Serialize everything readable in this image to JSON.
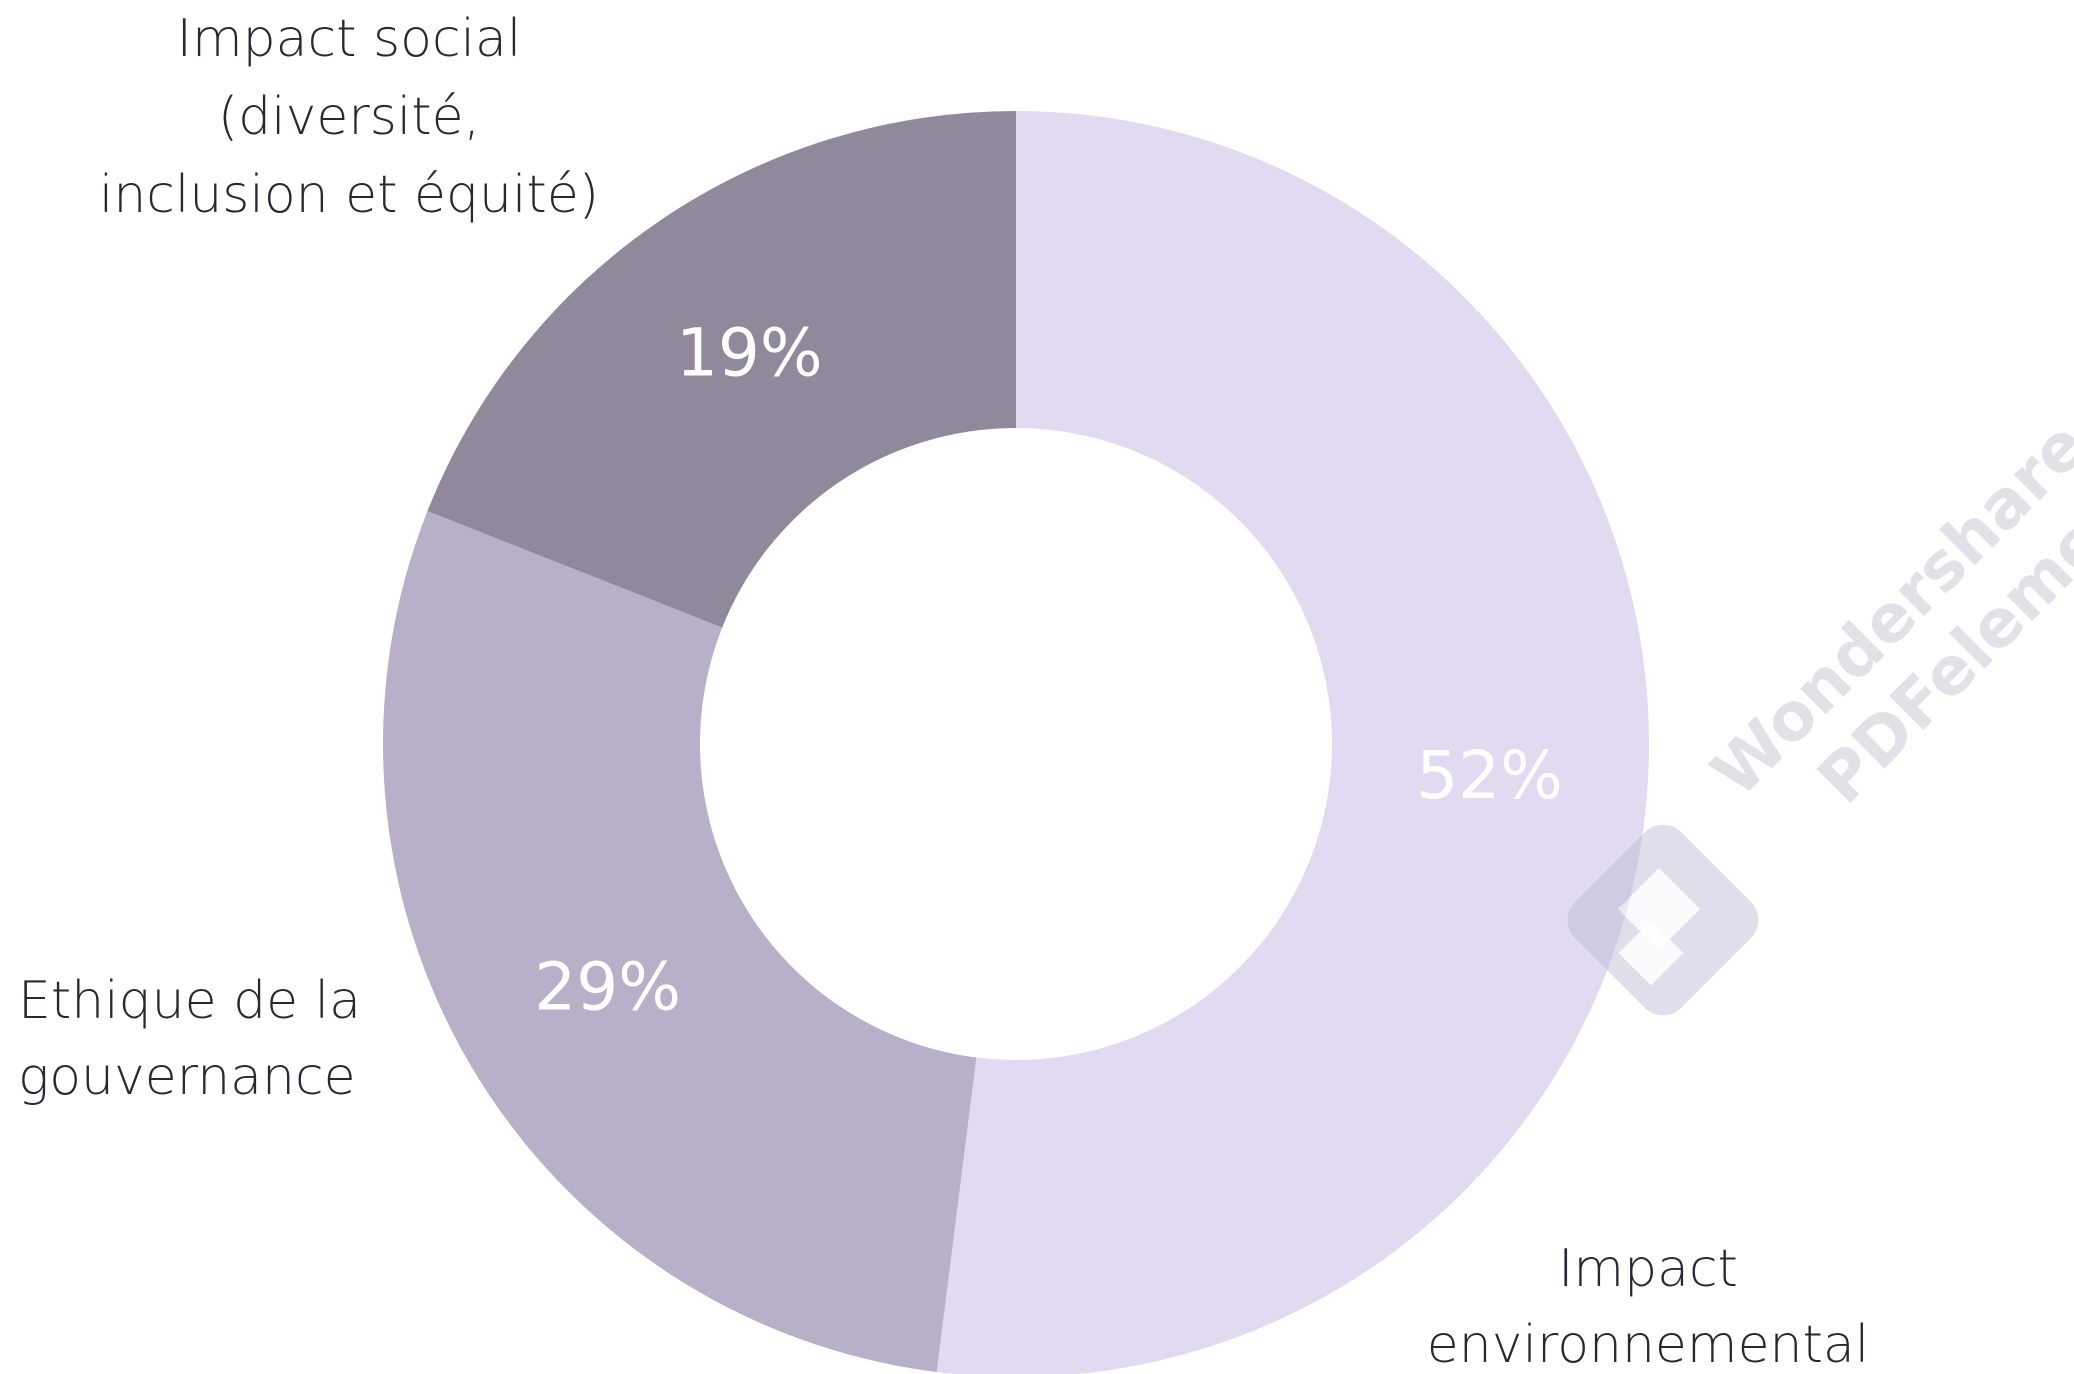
{
  "chart_data": {
    "type": "pie",
    "style": "donut",
    "title": "",
    "categories": [
      "Impact environnemental",
      "Ethique de la gouvernance",
      "Impact social (diversité, inclusion et équité)"
    ],
    "values": [
      52,
      29,
      19
    ],
    "value_labels": [
      "52%",
      "29%",
      "19%"
    ],
    "category_label_lines": [
      [
        "Impact",
        "environnemental"
      ],
      [
        "Ethique de la",
        "gouvernance"
      ],
      [
        "Impact social",
        "(diversité,",
        "inclusion et équité)"
      ]
    ],
    "colors": [
      "#e1daf0",
      "#b8afc8",
      "#90889b"
    ],
    "legend": "none (labels placed next to slices)",
    "start": "12 o'clock, clockwise"
  },
  "watermark": {
    "lines": [
      "Wondershare",
      "PDFelement"
    ],
    "icon": "pdfelement-logo-icon",
    "color": "#c9c9d6"
  }
}
